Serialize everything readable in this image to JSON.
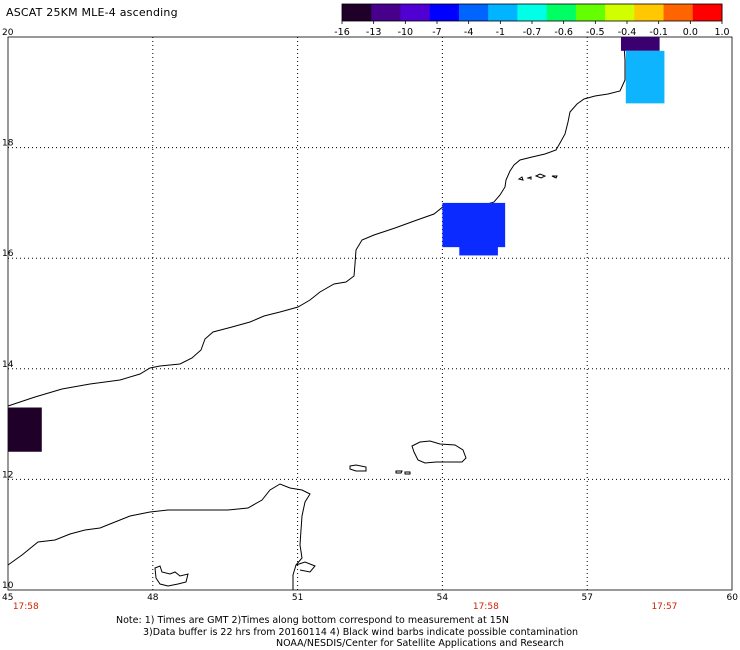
{
  "title": "ASCAT 25KM MLE-4 ascending",
  "colorbar": {
    "labels": [
      "-16",
      "-13",
      "-10",
      "-7",
      "-4",
      "-1",
      "-0.7",
      "-0.6",
      "-0.5",
      "-0.4",
      "-0.1",
      "0.0",
      "1.0"
    ],
    "colors": [
      "#1e0028",
      "#46008c",
      "#5000d2",
      "#0000ff",
      "#0064ff",
      "#00b4ff",
      "#00ffe6",
      "#00ff64",
      "#64ff00",
      "#d2ff00",
      "#ffc800",
      "#ff6400",
      "#ff0000"
    ]
  },
  "axes": {
    "lon_labels": [
      "45",
      "48",
      "51",
      "54",
      "57",
      "60"
    ],
    "lat_labels": [
      "20",
      "18",
      "16",
      "14",
      "12",
      "10"
    ],
    "lon_range": [
      45,
      60
    ],
    "lat_range": [
      10,
      20
    ]
  },
  "time_labels": [
    {
      "text": "17:58",
      "lon": 45.1
    },
    {
      "text": "17:58",
      "lon": 54.9
    },
    {
      "text": "17:57",
      "lon": 58.6
    }
  ],
  "time_color": "#d02000",
  "cells": [
    {
      "lon1": 45.0,
      "lon2": 45.7,
      "lat1": 12.5,
      "lat2": 13.3,
      "value": -16,
      "color": "#1e0028"
    },
    {
      "lon1": 54.0,
      "lon2": 55.3,
      "lat1": 16.2,
      "lat2": 17.0,
      "value": -7,
      "color": "#0a2aff"
    },
    {
      "lon1": 54.35,
      "lon2": 55.15,
      "lat1": 16.05,
      "lat2": 16.4,
      "value": -7,
      "color": "#0a2aff"
    },
    {
      "lon1": 57.7,
      "lon2": 58.5,
      "lat1": 19.75,
      "lat2": 20.0,
      "value": -13,
      "color": "#3a0070"
    },
    {
      "lon1": 57.8,
      "lon2": 58.6,
      "lat1": 18.8,
      "lat2": 19.75,
      "value": -1,
      "color": "#0fb4ff"
    }
  ],
  "notes": [
    "Note: 1) Times are GMT 2)Times along bottom correspond to measurement at 15N",
    "3)Data buffer is 22 hrs from 20160114 4) Black wind barbs indicate possible contamination",
    "NOAA/NESDIS/Center for Satellite Applications and Research"
  ]
}
